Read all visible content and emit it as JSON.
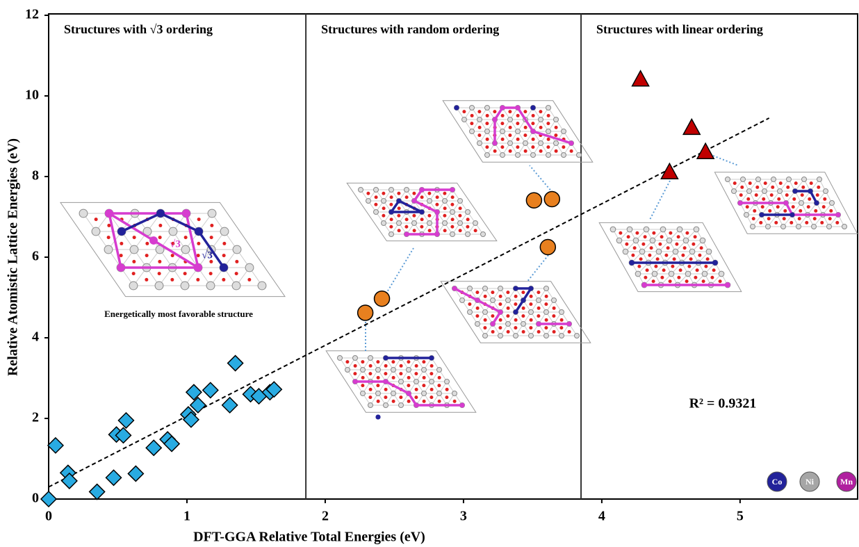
{
  "chart_data": {
    "type": "scatter",
    "xlabel": "DFT-GGA Relative Total Energies  (eV)",
    "ylabel": "Relative Atomistic Lattice Energies (eV)",
    "xlim": [
      0,
      5.85
    ],
    "ylim": [
      0,
      12
    ],
    "xticks": [
      0,
      1,
      2,
      3,
      4,
      5
    ],
    "yticks": [
      0,
      2,
      4,
      6,
      8,
      10,
      12
    ],
    "panel_titles": [
      "Structures with √3 ordering",
      "Structures with random ordering",
      "Structures with linear ordering"
    ],
    "dividers": [
      1.86,
      3.85
    ],
    "series": [
      {
        "marker": "diamond",
        "color": "#29abe2",
        "x": [
          0,
          0.05,
          0.14,
          0.15,
          0.35,
          0.47,
          0.49,
          0.54,
          0.56,
          0.63,
          0.76,
          0.86,
          0.89,
          1.01,
          1.03,
          1.05,
          1.08,
          1.17,
          1.31,
          1.35,
          1.46,
          1.52,
          1.6,
          1.63
        ],
        "values": [
          0,
          1.33,
          0.65,
          0.45,
          0.18,
          0.53,
          1.6,
          1.58,
          1.95,
          0.63,
          1.27,
          1.48,
          1.37,
          2.1,
          1.97,
          2.65,
          2.33,
          2.7,
          2.33,
          3.37,
          2.6,
          2.55,
          2.65,
          2.72
        ]
      },
      {
        "marker": "circle",
        "color": "#e8801f",
        "x": [
          2.29,
          2.41,
          3.51,
          3.64,
          3.61
        ],
        "values": [
          4.62,
          4.97,
          7.41,
          7.44,
          6.25
        ]
      },
      {
        "marker": "triangle",
        "color": "#c00000",
        "x": [
          4.28,
          4.49,
          4.65,
          4.75
        ],
        "values": [
          10.4,
          8.1,
          9.2,
          8.6
        ]
      }
    ],
    "trendline": {
      "x": [
        0,
        5.21
      ],
      "values": [
        0.3,
        9.45
      ]
    },
    "annotations": [
      "R² = 0.9321",
      "Energetically most  favorable structure",
      "√3",
      "√3"
    ],
    "elements": [
      {
        "label": "Co",
        "color": "#22229a"
      },
      {
        "label": "Ni",
        "color": "#a6a6a6"
      },
      {
        "label": "Mn",
        "color": "#b0209f"
      }
    ]
  }
}
